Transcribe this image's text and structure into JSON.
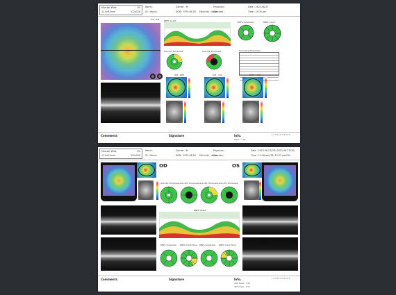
{
  "report1": {
    "scan_type": "Macular Wide",
    "eye": "OS",
    "scan_size": "12.0x9.0mm",
    "resolution": "512x128",
    "name_label": "Name :",
    "id_label": "ID : Nsuho",
    "gender_label": "Gender : M",
    "dob_label": "DOB : 1979-06-16",
    "ethnicity_label": "Ethnicity : Asian",
    "physician_label": "Physician :",
    "operator_label": "Operator :",
    "date_label": "Date : 2023-06-27",
    "time_label": "Time : 10:35 am",
    "fundus_label": "OS - ILM",
    "thickness_label": "RNFL Graph",
    "gcl_label": "GCL-IPL Thickness",
    "gcl2_label": "GCL-IPL Thickness",
    "quad_label": "RNFL Quadrant",
    "clock_label": "RNFL Clock",
    "summary_label": "Summary Parameter",
    "map_labels": [
      "ILM - RPE",
      "ILM - GCL",
      "RNFL - ONL"
    ],
    "comments": "Comments",
    "signature": "Signature",
    "info": "Info.",
    "info_value": "PupilL : 7.00",
    "serial": "1 2 3 4 5 6 7 8 9 0 0"
  },
  "report2": {
    "scan_type": "Macular Wide",
    "eye": "OU",
    "scan_size": "12.0x9.0mm",
    "resolution": "512x128",
    "name_label": "Name :",
    "id_label": "ID : Nsuho",
    "gender_label": "Gender : M",
    "dob_label": "DOB : 1979-06-16",
    "ethnicity_label": "Ethnicity : Asian",
    "physician_label": "Physician :",
    "operator_label": "Operator :",
    "date_label": "Date : 2023-06-27(OD) 2023-06-27(OS)",
    "time_label": "Time : 11:36 am(OD) 10:37 am(OS)",
    "od": "OD",
    "os": "OS",
    "gcl_labels": [
      "GCL-IPL Thickness",
      "GCL-IPL Thickness",
      "GCL-IPL Thickness",
      "GCL-IPL Thickness"
    ],
    "graph_label": "RNFL Graph",
    "quad_labels": [
      "RNFL Quadrant",
      "RNFL Clock Hour",
      "RNFL Quadrant",
      "RNFL Clock Hour"
    ],
    "comments": "Comments",
    "signature": "Signature",
    "info": "Info.",
    "info_values": [
      "(OD) PupilL : 5.40",
      "(OS) PupilL : 5.20"
    ],
    "serial": "1 2 3 4 5 6 7 8 9 0 0"
  }
}
